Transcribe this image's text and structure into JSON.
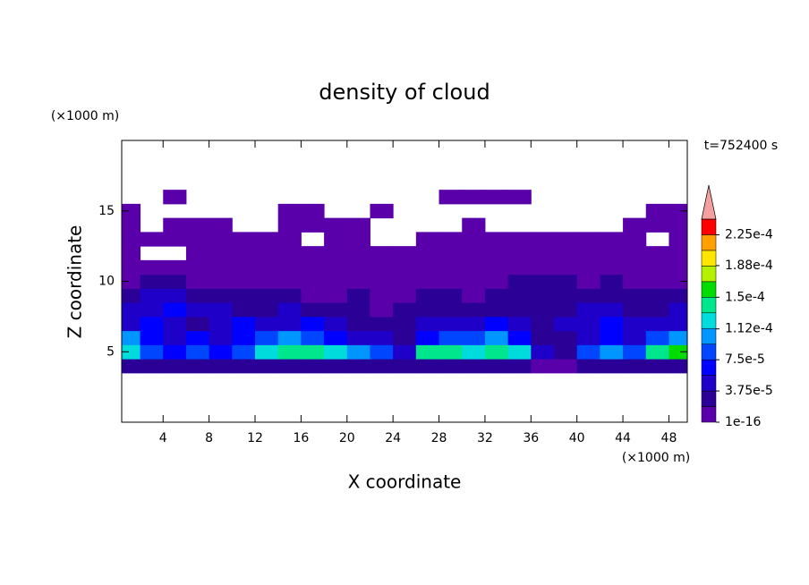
{
  "chart_data": {
    "type": "contour",
    "title": "density of cloud",
    "xlabel": "X coordinate",
    "ylabel": "Z coordinate",
    "x_unit": "(×1000 m)",
    "y_unit": "(×1000 m)",
    "time_label": "t=752400 s",
    "xlim": [
      0.4,
      49.6
    ],
    "ylim": [
      0,
      20
    ],
    "xticks": [
      4,
      8,
      12,
      16,
      20,
      24,
      28,
      32,
      36,
      40,
      44,
      48
    ],
    "yticks": [
      5,
      10,
      15
    ],
    "x": [
      1,
      3,
      5,
      7,
      9,
      11,
      13,
      15,
      17,
      19,
      21,
      23,
      25,
      27,
      29,
      31,
      33,
      35,
      37,
      39,
      41,
      43,
      45,
      47,
      49
    ],
    "y": [
      4,
      5,
      6,
      7,
      8,
      9,
      10,
      11,
      12,
      13,
      14,
      15,
      16
    ],
    "z_values": [
      [
        3e-05,
        3e-05,
        3e-05,
        3e-05,
        3e-05,
        3e-05,
        3e-05,
        3e-05,
        3e-05,
        3e-05,
        3e-05,
        3e-05,
        3e-05,
        3e-05,
        3e-05,
        3e-05,
        3e-05,
        3e-05,
        1e-05,
        1e-05,
        3e-05,
        3e-05,
        3e-05,
        3e-05,
        3e-05
      ],
      [
        0.00012,
        8e-05,
        6e-05,
        8e-05,
        6e-05,
        8e-05,
        0.00012,
        0.00014,
        0.00014,
        0.00012,
        0.0001,
        8e-05,
        5e-05,
        0.00014,
        0.00014,
        0.00012,
        0.00014,
        0.00012,
        5e-05,
        3e-05,
        8e-05,
        0.0001,
        8e-05,
        0.00014,
        0.00016
      ],
      [
        0.0001,
        6e-05,
        5e-05,
        6e-05,
        5e-05,
        6e-05,
        8e-05,
        0.0001,
        8e-05,
        6e-05,
        5e-05,
        5e-05,
        3e-05,
        6e-05,
        8e-05,
        8e-05,
        0.0001,
        6e-05,
        3e-05,
        3e-05,
        5e-05,
        6e-05,
        5e-05,
        8e-05,
        0.0001
      ],
      [
        5e-05,
        6e-05,
        5e-05,
        3e-05,
        5e-05,
        6e-05,
        5e-05,
        5e-05,
        6e-05,
        5e-05,
        3e-05,
        3e-05,
        3e-05,
        5e-05,
        5e-05,
        5e-05,
        6e-05,
        5e-05,
        3e-05,
        5e-05,
        5e-05,
        6e-05,
        5e-05,
        5e-05,
        5e-05
      ],
      [
        5e-05,
        5e-05,
        6e-05,
        5e-05,
        5e-05,
        3e-05,
        3e-05,
        5e-05,
        3e-05,
        3e-05,
        3e-05,
        1e-05,
        3e-05,
        3e-05,
        3e-05,
        3e-05,
        3e-05,
        3e-05,
        3e-05,
        3e-05,
        5e-05,
        5e-05,
        3e-05,
        3e-05,
        5e-05
      ],
      [
        3e-05,
        5e-05,
        5e-05,
        3e-05,
        3e-05,
        3e-05,
        3e-05,
        3e-05,
        1e-05,
        1e-05,
        3e-05,
        1e-05,
        1e-05,
        3e-05,
        3e-05,
        1e-05,
        3e-05,
        3e-05,
        3e-05,
        3e-05,
        3e-05,
        3e-05,
        3e-05,
        3e-05,
        3e-05
      ],
      [
        1e-05,
        3e-05,
        3e-05,
        1e-05,
        1e-05,
        1e-05,
        1e-05,
        1e-05,
        1e-05,
        1e-05,
        1e-05,
        1e-05,
        1e-05,
        1e-05,
        1e-05,
        1e-05,
        1e-05,
        3e-05,
        3e-05,
        3e-05,
        1e-05,
        3e-05,
        1e-05,
        1e-05,
        1e-05
      ],
      [
        1e-05,
        1e-05,
        1e-05,
        1e-05,
        1e-05,
        1e-05,
        1e-05,
        1e-05,
        1e-05,
        1e-05,
        1e-05,
        1e-05,
        1e-05,
        1e-05,
        1e-05,
        1e-05,
        1e-05,
        1e-05,
        1e-05,
        1e-05,
        1e-05,
        1e-05,
        1e-05,
        1e-05,
        1e-05
      ],
      [
        1e-05,
        null,
        null,
        1e-05,
        1e-05,
        1e-05,
        1e-05,
        1e-05,
        1e-05,
        1e-05,
        1e-05,
        1e-05,
        1e-05,
        1e-05,
        1e-05,
        1e-05,
        1e-05,
        1e-05,
        1e-05,
        1e-05,
        1e-05,
        1e-05,
        1e-05,
        1e-05,
        1e-05
      ],
      [
        1e-05,
        1e-05,
        1e-05,
        1e-05,
        1e-05,
        1e-05,
        1e-05,
        1e-05,
        null,
        1e-05,
        1e-05,
        null,
        null,
        1e-05,
        1e-05,
        1e-05,
        1e-05,
        1e-05,
        1e-05,
        1e-05,
        1e-05,
        1e-05,
        1e-05,
        null,
        1e-05
      ],
      [
        1e-05,
        null,
        1e-05,
        1e-05,
        1e-05,
        null,
        null,
        1e-05,
        1e-05,
        1e-05,
        1e-05,
        null,
        null,
        null,
        null,
        1e-05,
        null,
        null,
        null,
        null,
        null,
        null,
        1e-05,
        1e-05,
        1e-05
      ],
      [
        1e-05,
        null,
        null,
        null,
        null,
        null,
        null,
        1e-05,
        1e-05,
        null,
        null,
        1e-05,
        null,
        null,
        null,
        null,
        null,
        null,
        null,
        null,
        null,
        null,
        null,
        1e-05,
        1e-05
      ],
      [
        null,
        null,
        1e-05,
        null,
        null,
        null,
        null,
        null,
        null,
        null,
        null,
        null,
        null,
        null,
        1e-05,
        1e-05,
        1e-05,
        1e-05,
        null,
        null,
        null,
        null,
        null,
        null,
        null
      ]
    ],
    "levels": [
      1e-16,
      1.875e-05,
      3.75e-05,
      5.625e-05,
      7.5e-05,
      9.375e-05,
      0.0001125,
      0.00013125,
      0.00015,
      0.00016875,
      0.0001875,
      0.00020625,
      0.000225,
      0.00024375
    ],
    "colors": [
      "#5a00aa",
      "#2a0096",
      "#1e00c8",
      "#0000ff",
      "#0046ff",
      "#0096ff",
      "#00dcdc",
      "#00e68c",
      "#00dc00",
      "#b4f000",
      "#ffe600",
      "#ffa000",
      "#ff0000"
    ],
    "extend_color": "#f4a0a0",
    "cbar_ticks": [
      {
        "value": 1e-16,
        "label": "1e-16"
      },
      {
        "value": 3.75e-05,
        "label": "3.75e-5"
      },
      {
        "value": 7.5e-05,
        "label": "7.5e-5"
      },
      {
        "value": 0.000112,
        "label": "1.12e-4"
      },
      {
        "value": 0.00015,
        "label": "1.5e-4"
      },
      {
        "value": 0.000188,
        "label": "1.88e-4"
      },
      {
        "value": 0.000225,
        "label": "2.25e-4"
      }
    ]
  }
}
